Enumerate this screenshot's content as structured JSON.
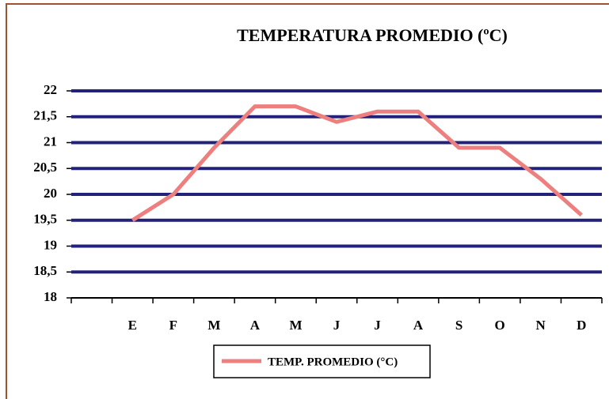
{
  "chart_data": {
    "type": "line",
    "title": "TEMPERATURA PROMEDIO (ºC)",
    "categories": [
      null,
      "E",
      "F",
      "M",
      "A",
      "M",
      "J",
      "J",
      "A",
      "S",
      "O",
      "N",
      "D"
    ],
    "series": [
      {
        "name": "TEMP. PROMEDIO (°C)",
        "color": "#ee7f7f",
        "values": [
          null,
          19.5,
          20,
          20.9,
          21.7,
          21.7,
          21.4,
          21.6,
          21.6,
          20.9,
          20.9,
          20.3,
          19.6
        ]
      }
    ],
    "ylim": [
      18,
      22
    ],
    "yticks": [
      18,
      {
        "value": 18.5,
        "label": "18,5"
      },
      19,
      {
        "value": 19.5,
        "label": "19,5"
      },
      20,
      {
        "value": 20.5,
        "label": "20,5"
      },
      21,
      {
        "value": 21.5,
        "label": "21,5"
      },
      22
    ],
    "grid": true,
    "legend": "bottom"
  }
}
